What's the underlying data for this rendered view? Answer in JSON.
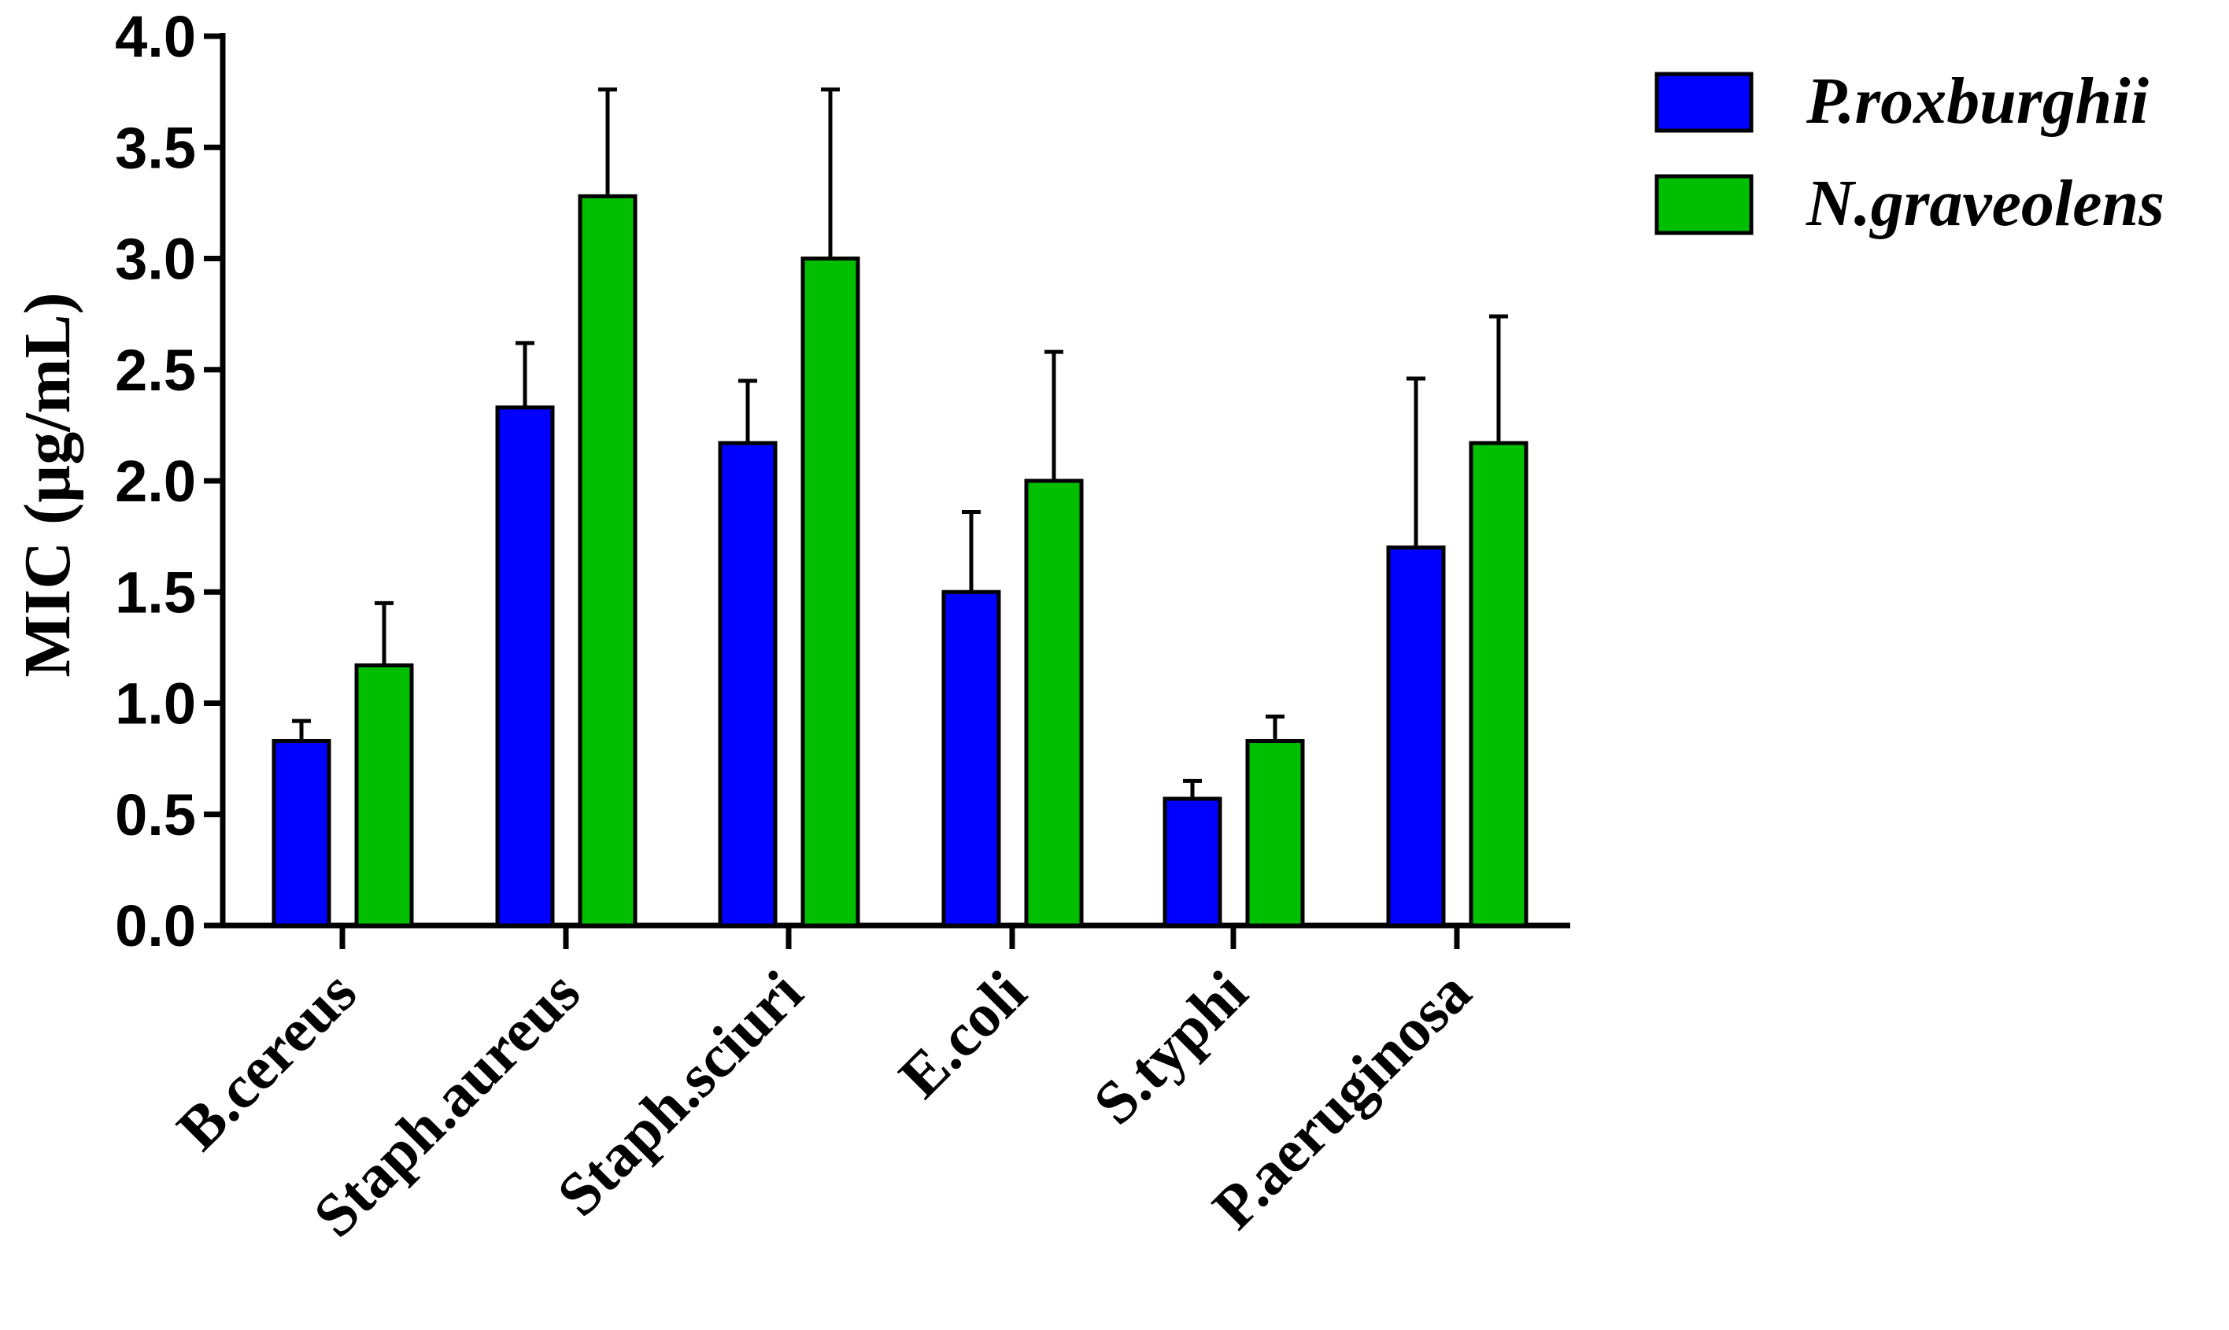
{
  "chart_data": {
    "type": "bar",
    "title": "",
    "xlabel": "",
    "ylabel": "MIC (µg/mL)",
    "ylim": [
      0,
      4.0
    ],
    "yticks": [
      "0.0",
      "0.5",
      "1.0",
      "1.5",
      "2.0",
      "2.5",
      "3.0",
      "3.5",
      "4.0"
    ],
    "categories": [
      "B.cereus",
      "Staph.aureus",
      "Staph.sciuri",
      "E.coli",
      "S.typhi",
      "P.aeruginosa"
    ],
    "series": [
      {
        "name": "P.roxburghii",
        "color": "#0000ff",
        "values": [
          0.83,
          2.33,
          2.17,
          1.5,
          0.57,
          1.7
        ],
        "errors": [
          0.09,
          0.29,
          0.28,
          0.36,
          0.08,
          0.76
        ]
      },
      {
        "name": "N.graveolens",
        "color": "#00bf00",
        "values": [
          1.17,
          3.28,
          3.0,
          2.0,
          0.83,
          2.17
        ],
        "errors": [
          0.28,
          0.48,
          0.76,
          0.58,
          0.11,
          0.57
        ]
      }
    ],
    "legend_position": "top-right",
    "grid": false
  }
}
